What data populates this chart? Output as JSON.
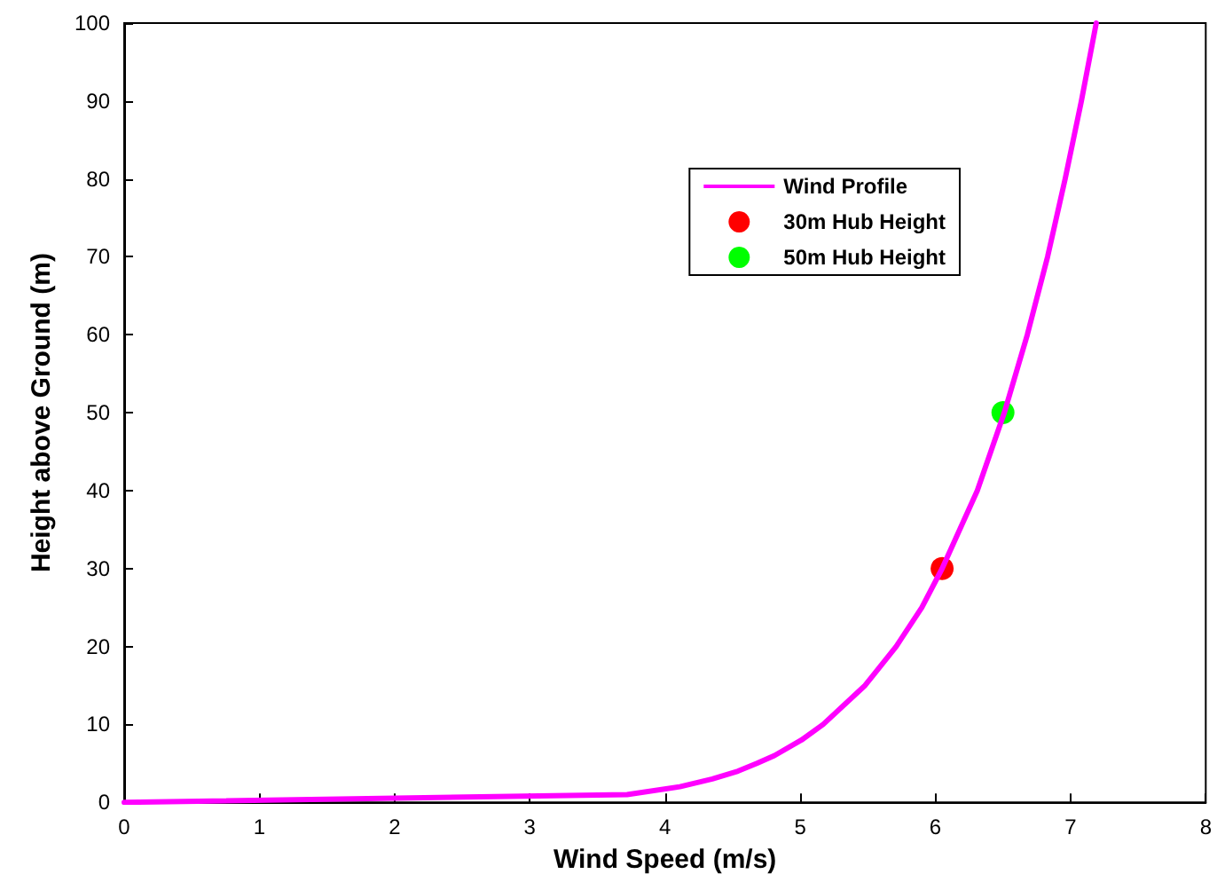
{
  "chart_data": {
    "type": "line",
    "xlabel": "Wind Speed (m/s)",
    "ylabel": "Height above Ground (m)",
    "xlim": [
      0,
      8
    ],
    "ylim": [
      0,
      100
    ],
    "xticks": [
      0,
      1,
      2,
      3,
      4,
      5,
      6,
      7,
      8
    ],
    "yticks": [
      0,
      10,
      20,
      30,
      40,
      50,
      60,
      70,
      80,
      90,
      100
    ],
    "grid": false,
    "legend": "top right",
    "series": [
      {
        "name": "Wind Profile",
        "color": "#ff00ff",
        "marker": "none",
        "line_style": "solid",
        "x": [
          0,
          3.72,
          4.11,
          4.35,
          4.54,
          4.68,
          4.81,
          5.01,
          5.17,
          5.48,
          5.71,
          5.9,
          6.05,
          6.31,
          6.51,
          6.68,
          6.83,
          6.96,
          7.08,
          7.19
        ],
        "values": [
          0,
          1,
          2,
          3,
          4,
          5,
          6,
          8,
          10,
          15,
          20,
          25,
          30,
          40,
          50,
          60,
          70,
          80,
          90,
          100
        ]
      },
      {
        "name": "30m Hub Height",
        "type": "scatter",
        "color": "#ff0000",
        "marker": "circle",
        "x": [
          6.05
        ],
        "values": [
          30
        ]
      },
      {
        "name": "50m Hub Height",
        "type": "scatter",
        "color": "#00ff00",
        "marker": "circle",
        "x": [
          6.5
        ],
        "values": [
          50
        ]
      }
    ]
  }
}
